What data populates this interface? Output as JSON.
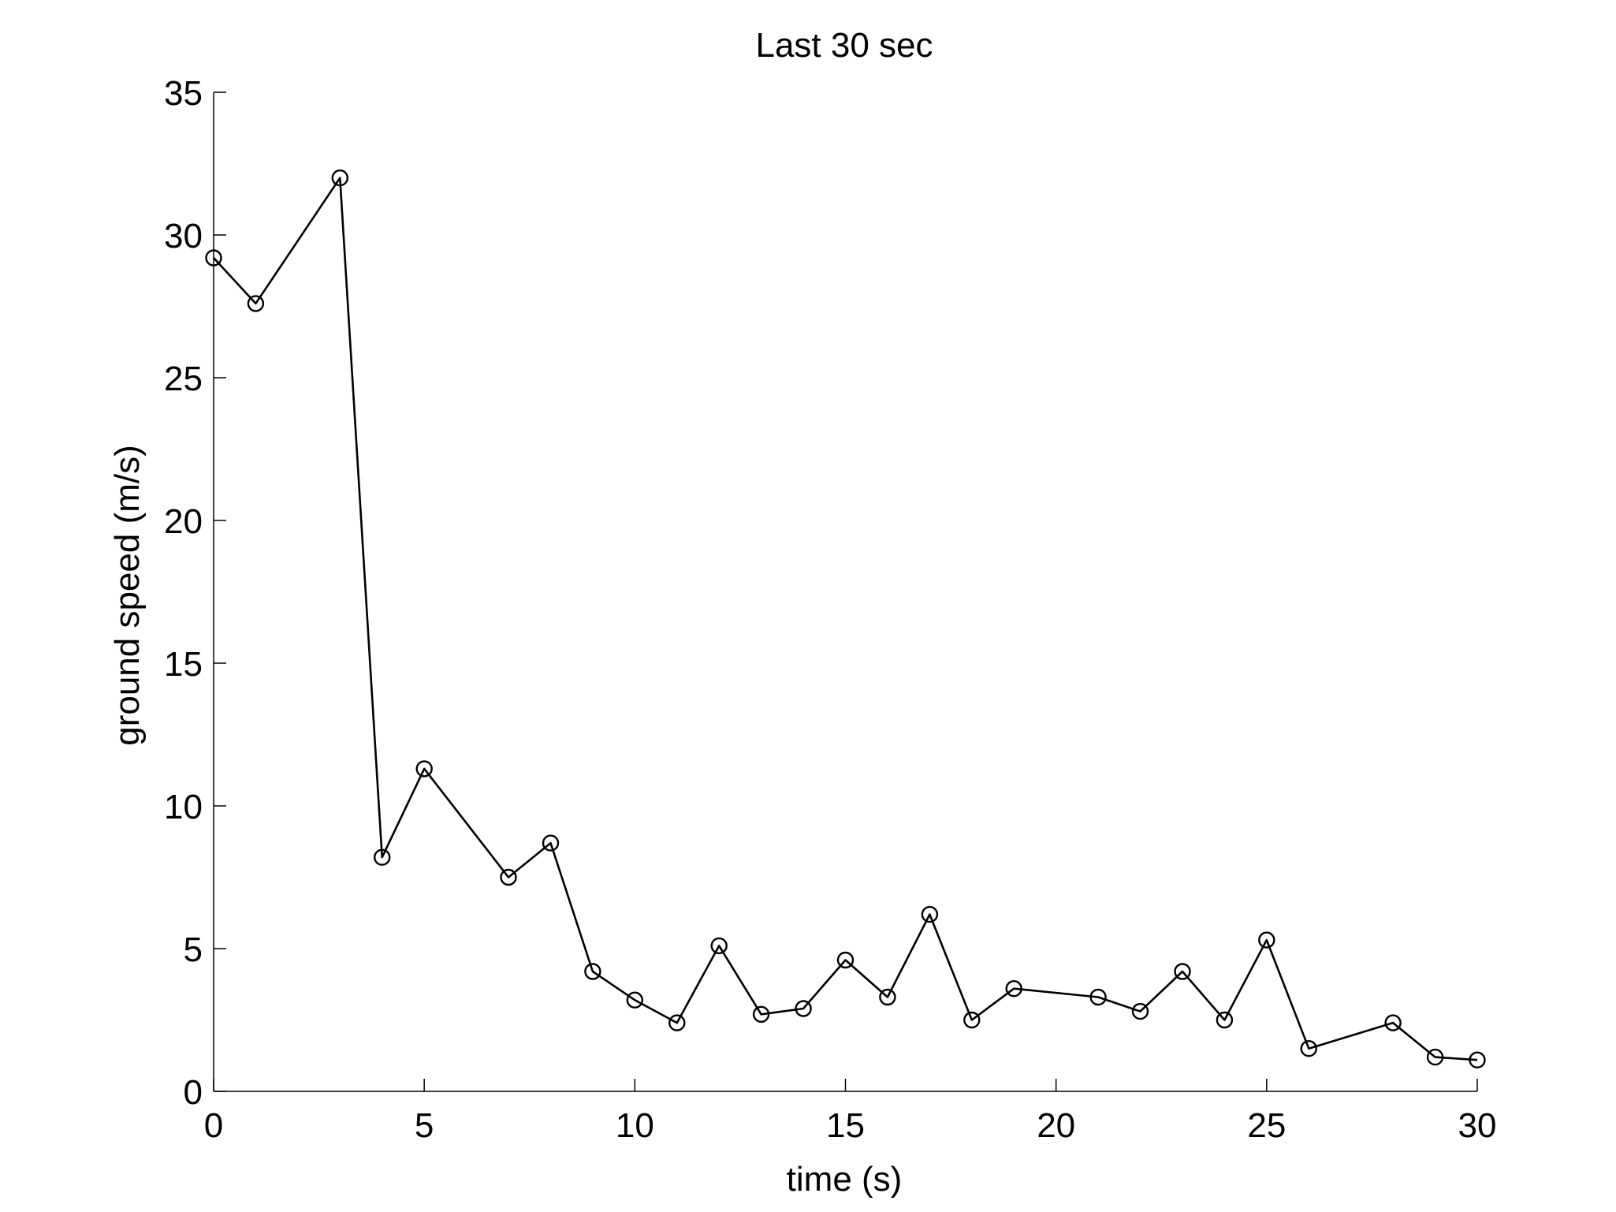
{
  "chart_data": {
    "type": "line",
    "title": "Last 30 sec",
    "xlabel": "time (s)",
    "ylabel": "ground speed (m/s)",
    "xlim": [
      0,
      30
    ],
    "ylim": [
      0,
      35
    ],
    "xticks": [
      0,
      5,
      10,
      15,
      20,
      25,
      30
    ],
    "yticks": [
      0,
      5,
      10,
      15,
      20,
      25,
      30,
      35
    ],
    "grid": false,
    "colors": {
      "line": "#000000",
      "axes": "#000000",
      "background": "#ffffff"
    },
    "marker": "circle-open",
    "series": [
      {
        "x": [
          0,
          1,
          3,
          4,
          5,
          7,
          8,
          9,
          10,
          11,
          12,
          13,
          14,
          15,
          16,
          17,
          18,
          19,
          21,
          22,
          23,
          24,
          25,
          26,
          28,
          29,
          30
        ],
        "y": [
          29.2,
          27.6,
          32.0,
          8.2,
          11.3,
          7.5,
          8.7,
          4.2,
          3.2,
          2.4,
          5.1,
          2.7,
          2.9,
          4.6,
          3.3,
          6.2,
          2.5,
          3.6,
          3.3,
          2.8,
          4.2,
          2.5,
          5.3,
          1.5,
          2.4,
          1.2,
          1.1
        ]
      }
    ]
  }
}
